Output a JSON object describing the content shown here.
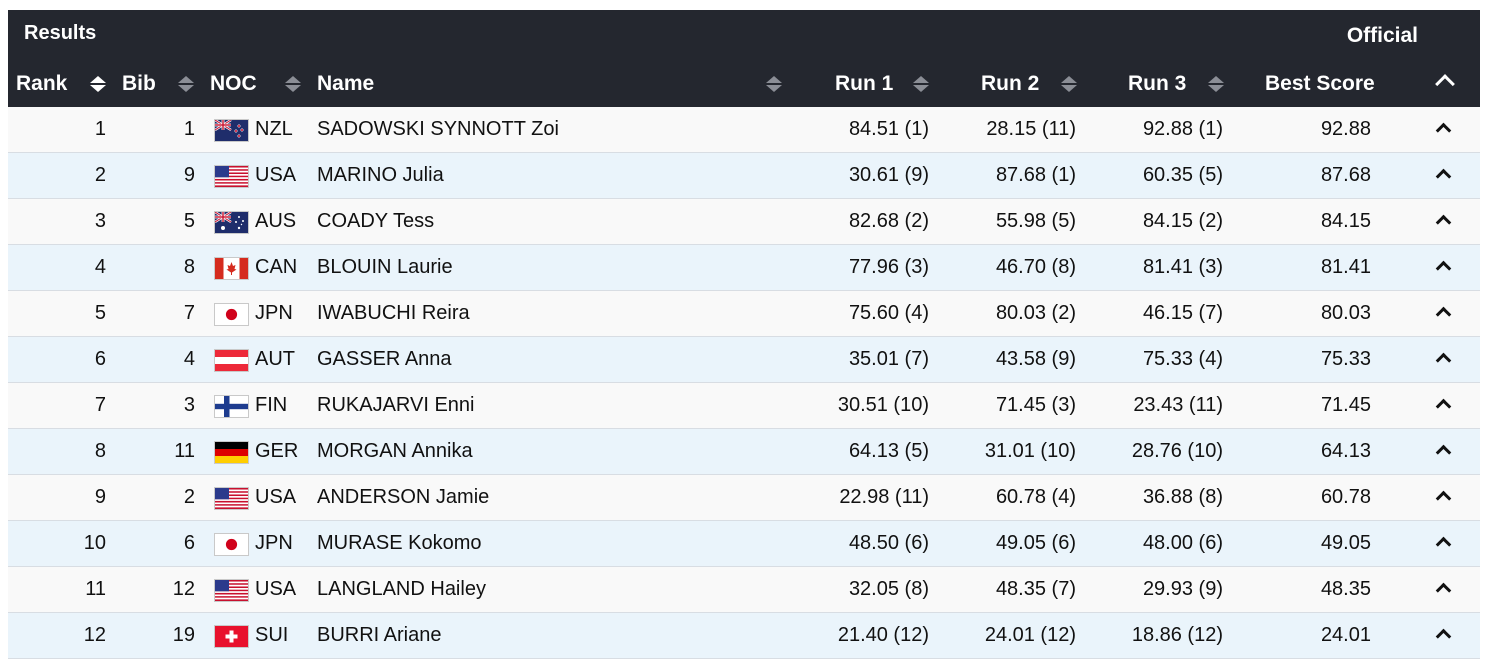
{
  "header": {
    "title": "Results",
    "status": "Official"
  },
  "columns": {
    "rank": "Rank",
    "bib": "Bib",
    "noc": "NOC",
    "name": "Name",
    "run1": "Run 1",
    "run2": "Run 2",
    "run3": "Run 3",
    "best": "Best Score"
  },
  "colors": {
    "header_bg": "#24272f",
    "row_alt": "#eaf4fb",
    "row": "#f9f9f9"
  },
  "rows": [
    {
      "rank": "1",
      "bib": "1",
      "noc": "NZL",
      "flag_icon": "nzl-flag-icon",
      "name": "SADOWSKI SYNNOTT Zoi",
      "run1": "84.51 (1)",
      "run2": "28.15 (11)",
      "run3": "92.88 (1)",
      "best": "92.88"
    },
    {
      "rank": "2",
      "bib": "9",
      "noc": "USA",
      "flag_icon": "usa-flag-icon",
      "name": "MARINO Julia",
      "run1": "30.61 (9)",
      "run2": "87.68 (1)",
      "run3": "60.35 (5)",
      "best": "87.68"
    },
    {
      "rank": "3",
      "bib": "5",
      "noc": "AUS",
      "flag_icon": "aus-flag-icon",
      "name": "COADY Tess",
      "run1": "82.68 (2)",
      "run2": "55.98 (5)",
      "run3": "84.15 (2)",
      "best": "84.15"
    },
    {
      "rank": "4",
      "bib": "8",
      "noc": "CAN",
      "flag_icon": "can-flag-icon",
      "name": "BLOUIN Laurie",
      "run1": "77.96 (3)",
      "run2": "46.70 (8)",
      "run3": "81.41 (3)",
      "best": "81.41"
    },
    {
      "rank": "5",
      "bib": "7",
      "noc": "JPN",
      "flag_icon": "jpn-flag-icon",
      "name": "IWABUCHI Reira",
      "run1": "75.60 (4)",
      "run2": "80.03 (2)",
      "run3": "46.15 (7)",
      "best": "80.03"
    },
    {
      "rank": "6",
      "bib": "4",
      "noc": "AUT",
      "flag_icon": "aut-flag-icon",
      "name": "GASSER Anna",
      "run1": "35.01 (7)",
      "run2": "43.58 (9)",
      "run3": "75.33 (4)",
      "best": "75.33"
    },
    {
      "rank": "7",
      "bib": "3",
      "noc": "FIN",
      "flag_icon": "fin-flag-icon",
      "name": "RUKAJARVI Enni",
      "run1": "30.51 (10)",
      "run2": "71.45 (3)",
      "run3": "23.43 (11)",
      "best": "71.45"
    },
    {
      "rank": "8",
      "bib": "11",
      "noc": "GER",
      "flag_icon": "ger-flag-icon",
      "name": "MORGAN Annika",
      "run1": "64.13 (5)",
      "run2": "31.01 (10)",
      "run3": "28.76 (10)",
      "best": "64.13"
    },
    {
      "rank": "9",
      "bib": "2",
      "noc": "USA",
      "flag_icon": "usa-flag-icon",
      "name": "ANDERSON Jamie",
      "run1": "22.98 (11)",
      "run2": "60.78 (4)",
      "run3": "36.88 (8)",
      "best": "60.78"
    },
    {
      "rank": "10",
      "bib": "6",
      "noc": "JPN",
      "flag_icon": "jpn-flag-icon",
      "name": "MURASE Kokomo",
      "run1": "48.50 (6)",
      "run2": "49.05 (6)",
      "run3": "48.00 (6)",
      "best": "49.05"
    },
    {
      "rank": "11",
      "bib": "12",
      "noc": "USA",
      "flag_icon": "usa-flag-icon",
      "name": "LANGLAND Hailey",
      "run1": "32.05 (8)",
      "run2": "48.35 (7)",
      "run3": "29.93 (9)",
      "best": "48.35"
    },
    {
      "rank": "12",
      "bib": "19",
      "noc": "SUI",
      "flag_icon": "sui-flag-icon",
      "name": "BURRI Ariane",
      "run1": "21.40 (12)",
      "run2": "24.01 (12)",
      "run3": "18.86 (12)",
      "best": "24.01"
    }
  ]
}
